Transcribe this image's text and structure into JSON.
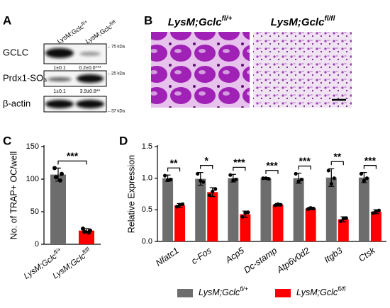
{
  "panel_labels": {
    "a": "A",
    "b": "B",
    "c": "C",
    "d": "D"
  },
  "genotypes": [
    {
      "base": "LysM;Gclc",
      "sup": "fl/+"
    },
    {
      "base": "LysM;Gclc",
      "sup": "fl/fl"
    }
  ],
  "blot": {
    "rows": [
      {
        "label": "GCLC",
        "marker": "←75 kDa",
        "quant": [
          "1±0.1",
          "0.2±0.0***"
        ]
      },
      {
        "label": "Prdx1-SO₃",
        "marker": "←25 kDa",
        "quant": [
          "1±0.1",
          "3.9±0.8**"
        ]
      },
      {
        "label": "β-actin",
        "marker": "←37 kDa"
      }
    ]
  },
  "chart_data": [
    {
      "type": "bar",
      "ylabel": "No. of TRAP+ OC/well",
      "categories": [
        "LysM;Gclc",
        "LysM;Gclc"
      ],
      "category_superscripts": [
        "fl/+",
        "fl/fl"
      ],
      "values": [
        107,
        21
      ],
      "errors": [
        10,
        3
      ],
      "points": [
        [
          117,
          108,
          103,
          98
        ],
        [
          24,
          21,
          19,
          18
        ]
      ],
      "colors": [
        "#6d6d6d",
        "#ff0000"
      ],
      "significance": "***",
      "ylim": [
        0,
        150
      ],
      "yticks": [
        0,
        50,
        100,
        150
      ]
    },
    {
      "type": "grouped_bar",
      "ylabel": "Relative Expression",
      "categories": [
        "Nfatc1",
        "c-Fos",
        "Acp5",
        "Dc-stamp",
        "Atp6v0d2",
        "Itgb3",
        "Ctsk"
      ],
      "series": [
        {
          "name": "LysM;Gclc",
          "superscript": "fl/+",
          "color": "#6d6d6d",
          "values": [
            1.0,
            0.99,
            1.0,
            1.0,
            1.0,
            1.01,
            1.01
          ],
          "errors": [
            0.05,
            0.1,
            0.06,
            0.01,
            0.08,
            0.14,
            0.08
          ],
          "points": [
            [
              1.04,
              0.97,
              0.98
            ],
            [
              1.07,
              0.96,
              0.94
            ],
            [
              1.05,
              0.97,
              0.98
            ],
            [
              1.0,
              1.0,
              0.99
            ],
            [
              1.07,
              0.95,
              0.98
            ],
            [
              1.12,
              0.91,
              1.0
            ],
            [
              1.07,
              0.96,
              1.0
            ]
          ]
        },
        {
          "name": "LysM;Gclc",
          "superscript": "fl/fl",
          "color": "#ff0000",
          "values": [
            0.57,
            0.78,
            0.43,
            0.58,
            0.52,
            0.35,
            0.47
          ],
          "errors": [
            0.03,
            0.07,
            0.05,
            0.02,
            0.02,
            0.04,
            0.03
          ],
          "points": [
            [
              0.55,
              0.58,
              0.59
            ],
            [
              0.73,
              0.79,
              0.83
            ],
            [
              0.39,
              0.45,
              0.46
            ],
            [
              0.57,
              0.59,
              0.58
            ],
            [
              0.51,
              0.53,
              0.52
            ],
            [
              0.32,
              0.36,
              0.37
            ],
            [
              0.45,
              0.48,
              0.49
            ]
          ]
        }
      ],
      "significance": [
        "**",
        "*",
        "***",
        "***",
        "***",
        "**",
        "***"
      ],
      "ylim": [
        0,
        1.5
      ],
      "yticks": [
        {
          "value": 0,
          "label": "0.0"
        },
        0.5,
        {
          "value": 1,
          "label": "1.0"
        },
        1.5
      ]
    }
  ]
}
